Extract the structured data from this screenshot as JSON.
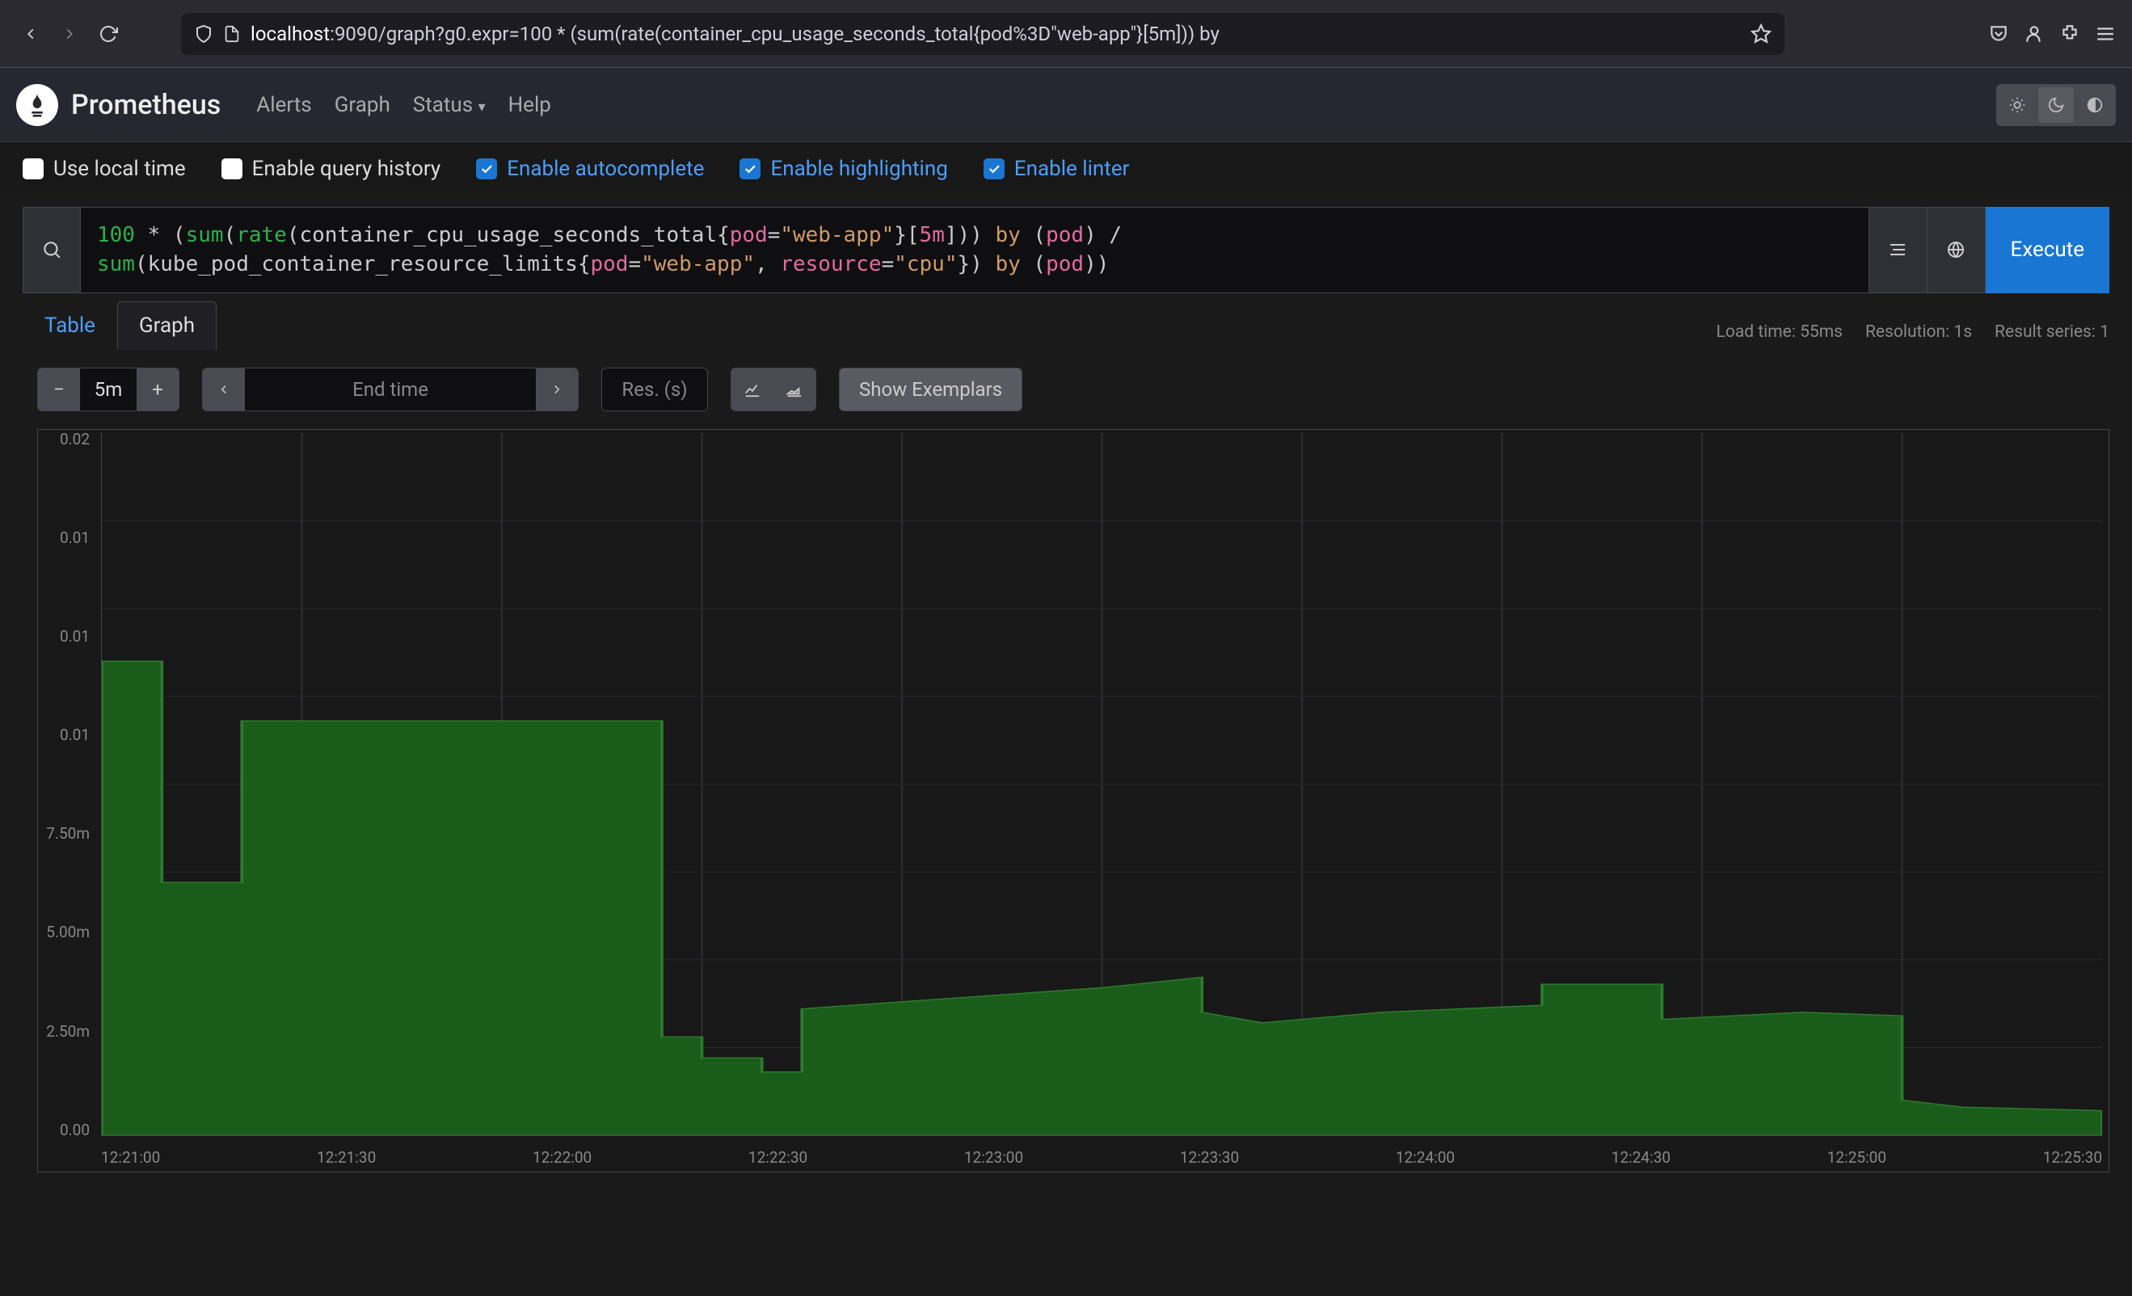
{
  "browser": {
    "url_host": "localhost",
    "url_rest": ":9090/graph?g0.expr=100 * (sum(rate(container_cpu_usage_seconds_total{pod%3D\"web-app\"}[5m])) by"
  },
  "nav": {
    "title": "Prometheus",
    "links": [
      "Alerts",
      "Graph",
      "Status",
      "Help"
    ]
  },
  "options": [
    {
      "label": "Use local time",
      "checked": false,
      "link": false
    },
    {
      "label": "Enable query history",
      "checked": false,
      "link": false
    },
    {
      "label": "Enable autocomplete",
      "checked": true,
      "link": true
    },
    {
      "label": "Enable highlighting",
      "checked": true,
      "link": true
    },
    {
      "label": "Enable linter",
      "checked": true,
      "link": true
    }
  ],
  "query": {
    "line1_parts": [
      {
        "t": "num",
        "v": "100"
      },
      {
        "t": "op",
        "v": " * ("
      },
      {
        "t": "fn",
        "v": "sum"
      },
      {
        "t": "op",
        "v": "("
      },
      {
        "t": "fn",
        "v": "rate"
      },
      {
        "t": "op",
        "v": "("
      },
      {
        "t": "metric",
        "v": "container_cpu_usage_seconds_total"
      },
      {
        "t": "op",
        "v": "{"
      },
      {
        "t": "lbl",
        "v": "pod"
      },
      {
        "t": "op",
        "v": "="
      },
      {
        "t": "str",
        "v": "\"web-app\""
      },
      {
        "t": "op",
        "v": "}["
      },
      {
        "t": "dur",
        "v": "5m"
      },
      {
        "t": "op",
        "v": "])) "
      },
      {
        "t": "kw",
        "v": "by"
      },
      {
        "t": "op",
        "v": " ("
      },
      {
        "t": "lbl",
        "v": "pod"
      },
      {
        "t": "op",
        "v": ") /"
      }
    ],
    "line2_parts": [
      {
        "t": "fn",
        "v": "sum"
      },
      {
        "t": "op",
        "v": "("
      },
      {
        "t": "metric",
        "v": "kube_pod_container_resource_limits"
      },
      {
        "t": "op",
        "v": "{"
      },
      {
        "t": "lbl",
        "v": "pod"
      },
      {
        "t": "op",
        "v": "="
      },
      {
        "t": "str",
        "v": "\"web-app\""
      },
      {
        "t": "op",
        "v": ", "
      },
      {
        "t": "lbl",
        "v": "resource"
      },
      {
        "t": "op",
        "v": "="
      },
      {
        "t": "str",
        "v": "\"cpu\""
      },
      {
        "t": "op",
        "v": "}) "
      },
      {
        "t": "kw",
        "v": "by"
      },
      {
        "t": "op",
        "v": " ("
      },
      {
        "t": "lbl",
        "v": "pod"
      },
      {
        "t": "op",
        "v": ")) "
      }
    ],
    "execute": "Execute"
  },
  "stats": {
    "load": "Load time: 55ms",
    "resolution": "Resolution: 1s",
    "series": "Result series: 1"
  },
  "tabs": {
    "table": "Table",
    "graph": "Graph"
  },
  "controls": {
    "range": "5m",
    "end_time": "End time",
    "res": "Res. (s)",
    "exemplars": "Show Exemplars"
  },
  "chart": {
    "type": "area",
    "fill_color": "#1a5c1a",
    "stroke_color": "#2d7a2d",
    "background": "#181818",
    "grid_color": "#2a2a30",
    "ymax": 0.02,
    "y_ticks": [
      "0.02",
      "",
      "0.01",
      "",
      "0.01",
      "",
      "0.01",
      "",
      "7.50m",
      "",
      "5.00m",
      "",
      "2.50m",
      "",
      "0.00"
    ],
    "y_labels_visible": [
      "0.02",
      "0.01",
      "0.01",
      "0.01",
      "7.50m",
      "5.00m",
      "2.50m",
      "0.00"
    ],
    "x_labels": [
      "12:21:00",
      "12:21:30",
      "12:22:00",
      "12:22:30",
      "12:23:00",
      "12:23:30",
      "12:24:00",
      "12:24:30",
      "12:25:00",
      "12:25:30"
    ],
    "points": [
      [
        0.0,
        0.0135
      ],
      [
        0.03,
        0.0135
      ],
      [
        0.03,
        0.0072
      ],
      [
        0.07,
        0.0072
      ],
      [
        0.07,
        0.0118
      ],
      [
        0.28,
        0.0118
      ],
      [
        0.28,
        0.0028
      ],
      [
        0.3,
        0.0028
      ],
      [
        0.3,
        0.0022
      ],
      [
        0.33,
        0.0022
      ],
      [
        0.33,
        0.0018
      ],
      [
        0.35,
        0.0018
      ],
      [
        0.35,
        0.0036
      ],
      [
        0.4,
        0.0038
      ],
      [
        0.5,
        0.0042
      ],
      [
        0.55,
        0.0045
      ],
      [
        0.55,
        0.0035
      ],
      [
        0.58,
        0.0032
      ],
      [
        0.64,
        0.0035
      ],
      [
        0.72,
        0.0037
      ],
      [
        0.72,
        0.0043
      ],
      [
        0.78,
        0.0043
      ],
      [
        0.78,
        0.0033
      ],
      [
        0.85,
        0.0035
      ],
      [
        0.9,
        0.0034
      ],
      [
        0.9,
        0.001
      ],
      [
        0.93,
        0.0008
      ],
      [
        1.0,
        0.0007
      ]
    ]
  }
}
